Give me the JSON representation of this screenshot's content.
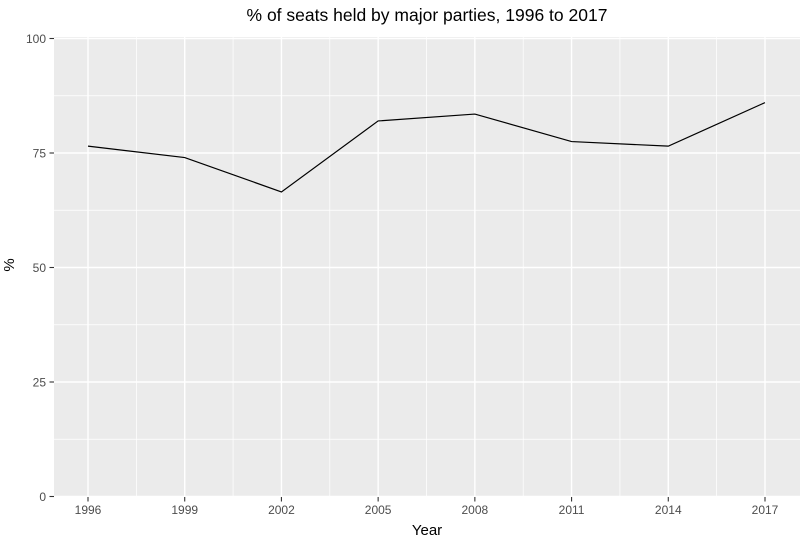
{
  "chart_data": {
    "type": "line",
    "title": "% of seats held by major parties, 1996 to 2017",
    "xlabel": "Year",
    "ylabel": "%",
    "x": [
      1996,
      1999,
      2002,
      2005,
      2008,
      2011,
      2014,
      2017
    ],
    "series": [
      {
        "name": "% of seats held by major parties",
        "values": [
          76.5,
          74,
          66.5,
          82,
          83.5,
          77.5,
          76.5,
          86
        ]
      }
    ],
    "x_ticks": [
      1996,
      1999,
      2002,
      2005,
      2008,
      2011,
      2014,
      2017
    ],
    "y_ticks": [
      0,
      25,
      50,
      75,
      100
    ],
    "xlim": [
      1996,
      2017
    ],
    "ylim": [
      0,
      100
    ],
    "grid": "major-and-minor",
    "legend": "none",
    "style": {
      "figure_bg": "#FFFFFF",
      "panel_bg": "#EBEBEB",
      "grid_color": "#FFFFFF",
      "line_color": "#000000",
      "tick_mark_color": "#333333",
      "tick_label_color": "#4D4D4D",
      "title_color": "#000000"
    }
  }
}
